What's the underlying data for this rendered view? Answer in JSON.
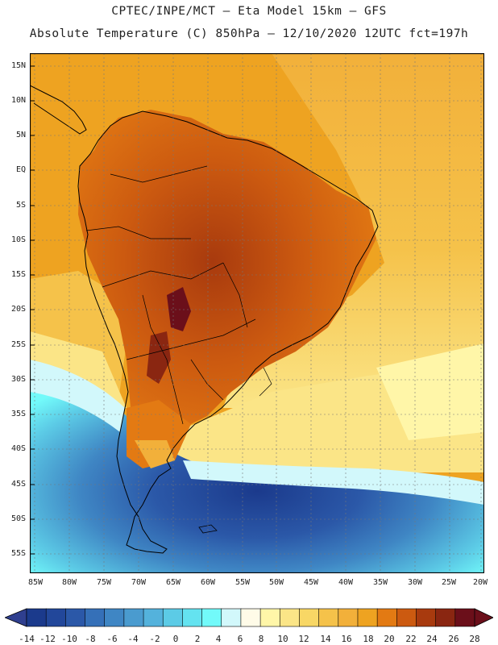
{
  "title": {
    "line1": "CPTEC/INPE/MCT –  Eta Model 15km – GFS",
    "line2": "Absolute Temperature (C) 850hPa – 12/10/2020 12UTC fct=197h"
  },
  "map": {
    "lat_labels": [
      "15N",
      "10N",
      "5N",
      "EQ",
      "5S",
      "10S",
      "15S",
      "20S",
      "25S",
      "30S",
      "35S",
      "40S",
      "45S",
      "50S",
      "55S"
    ],
    "lon_labels": [
      "85W",
      "80W",
      "75W",
      "70W",
      "65W",
      "60W",
      "55W",
      "50W",
      "45W",
      "40W",
      "35W",
      "30W",
      "25W",
      "20W"
    ],
    "frame_color": "#000000",
    "grid_color": "#777777",
    "coastline_color": "#000000"
  },
  "colorbar": {
    "labels": [
      "-14",
      "-12",
      "-10",
      "-8",
      "-6",
      "-4",
      "-2",
      "0",
      "2",
      "4",
      "6",
      "8",
      "10",
      "12",
      "14",
      "16",
      "18",
      "20",
      "22",
      "24",
      "26",
      "28"
    ],
    "under_color": "#2f3f8f",
    "over_color": "#6b0f1a",
    "colors": [
      "#1b3a8c",
      "#22479a",
      "#2b58a8",
      "#3570b8",
      "#3f86c4",
      "#4a9bcf",
      "#54b2dc",
      "#5ccbe6",
      "#64e3f0",
      "#72fafa",
      "#d2f8fb",
      "#fffbe8",
      "#fff6a8",
      "#fbe587",
      "#f8d765",
      "#f5c24a",
      "#f2b03a",
      "#eea321",
      "#e37a13",
      "#cc5a10",
      "#a83a0e",
      "#8a2611",
      "#6b0f1a"
    ]
  }
}
